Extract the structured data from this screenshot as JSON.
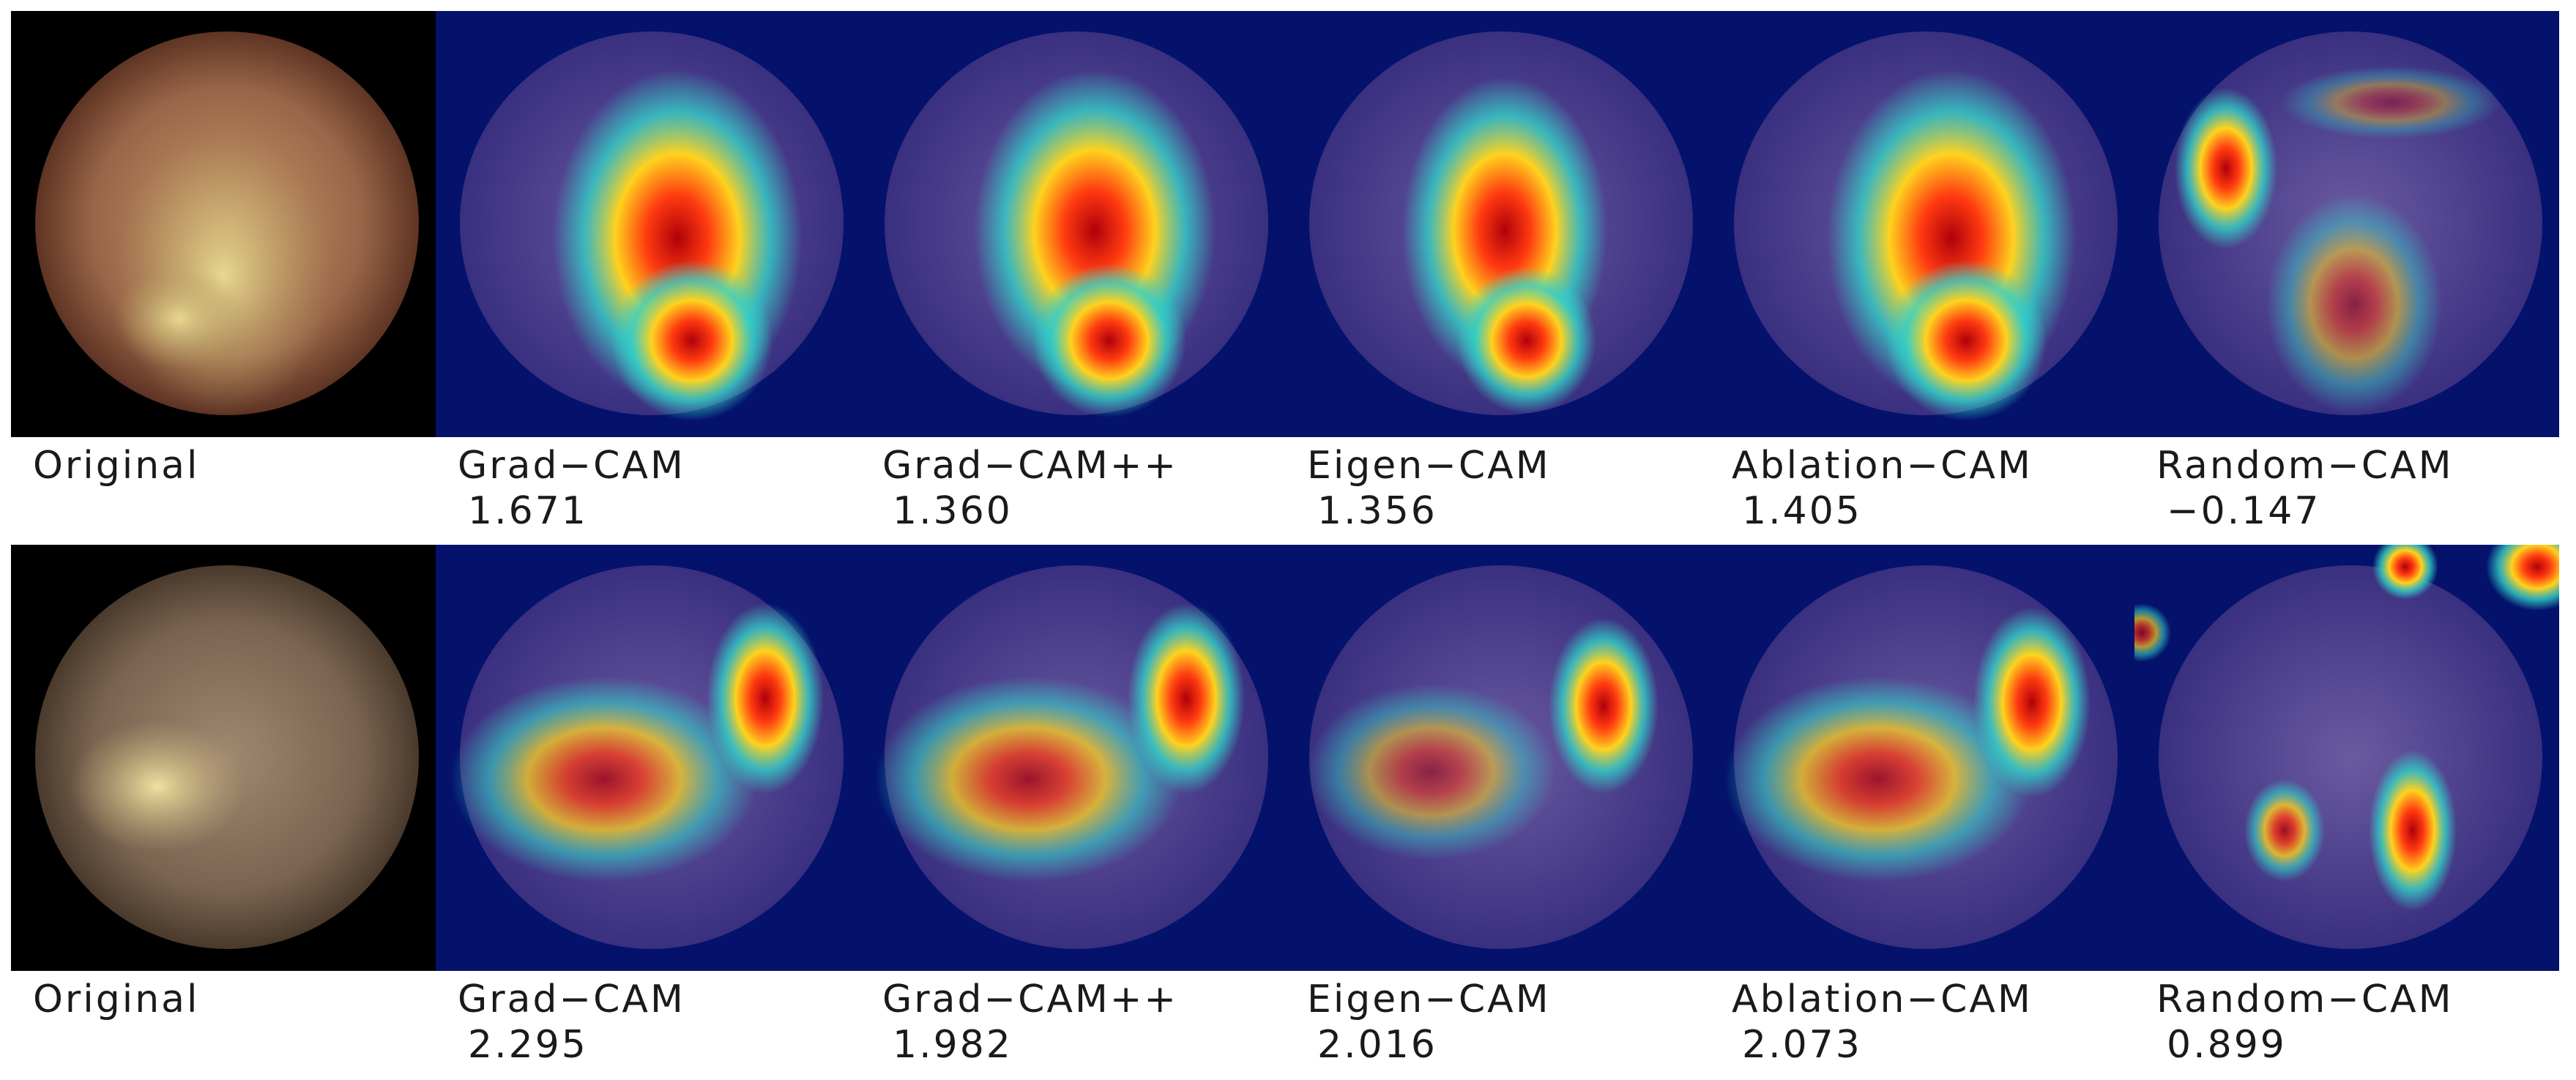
{
  "rows": [
    {
      "panels": [
        {
          "method": "Original",
          "score": ""
        },
        {
          "method": "Grad−CAM",
          "score": "1.671"
        },
        {
          "method": "Grad−CAM++",
          "score": "1.360"
        },
        {
          "method": "Eigen−CAM",
          "score": "1.356"
        },
        {
          "method": "Ablation−CAM",
          "score": "1.405"
        },
        {
          "method": "Random−CAM",
          "score": "−0.147"
        }
      ]
    },
    {
      "panels": [
        {
          "method": "Original",
          "score": ""
        },
        {
          "method": "Grad−CAM",
          "score": "2.295"
        },
        {
          "method": "Grad−CAM++",
          "score": "1.982"
        },
        {
          "method": "Eigen−CAM",
          "score": "2.016"
        },
        {
          "method": "Ablation−CAM",
          "score": "2.073"
        },
        {
          "method": "Random−CAM",
          "score": "0.899"
        }
      ]
    }
  ],
  "colors": {
    "heatmap_background": "#04126b",
    "hot": "#c8000f",
    "warm": "#ffd21e",
    "cool": "#33d1c8",
    "tissue_row1": "#a07050",
    "tissue_row2": "#8a7058"
  }
}
